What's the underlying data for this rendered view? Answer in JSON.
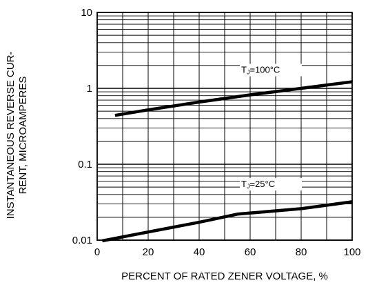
{
  "chart_data": {
    "type": "line",
    "title": "",
    "xlabel": "PERCENT OF RATED ZENER VOLTAGE, %",
    "ylabel_lines": [
      "INSTANTANEOUS REVERSE CUR-",
      "RENT, MICROAMPERES"
    ],
    "xlim": [
      0,
      100
    ],
    "ylim": [
      0.01,
      10
    ],
    "yscale": "log",
    "grid": true,
    "x_ticks": [
      0,
      20,
      40,
      60,
      80,
      100
    ],
    "x_tick_labels": [
      "0",
      "20",
      "40",
      "60",
      "80",
      "100"
    ],
    "y_ticks": [
      0.01,
      0.1,
      1,
      10
    ],
    "y_tick_labels": [
      "0.01",
      "0.1",
      "1",
      "10"
    ],
    "series": [
      {
        "name_main": "T",
        "name_sub": "J",
        "name_rest": "=100°C",
        "label_at": [
          60,
          1.6
        ],
        "x": [
          7,
          20,
          40,
          60,
          80,
          100
        ],
        "y": [
          0.44,
          0.52,
          0.66,
          0.82,
          1.0,
          1.22
        ]
      },
      {
        "name_main": "T",
        "name_sub": "J",
        "name_rest": "=25°C",
        "label_at": [
          60,
          0.05
        ],
        "x": [
          2,
          20,
          40,
          55,
          80,
          100
        ],
        "y": [
          0.0098,
          0.0128,
          0.0172,
          0.022,
          0.026,
          0.032
        ]
      }
    ],
    "colors": {
      "line": "#000000",
      "grid": "#000000",
      "background": "#ffffff"
    }
  }
}
